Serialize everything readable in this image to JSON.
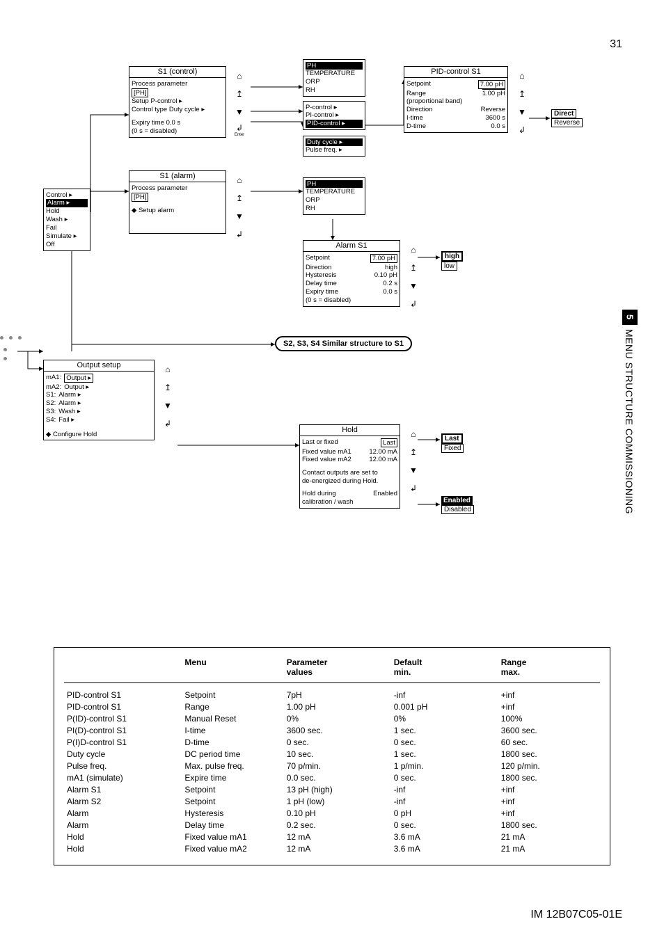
{
  "page_number": "31",
  "side_tab": {
    "number": "5",
    "text": "MENU STRUCTURE COMMISSIONING"
  },
  "doc_id": "IM 12B07C05-01E",
  "colors": {
    "line": "#000000",
    "bg": "#ffffff",
    "inv_bg": "#000000",
    "inv_fg": "#ffffff",
    "dot": "#888888"
  },
  "wires_arrowhead": {
    "size": 6,
    "color": "#000000"
  },
  "nav_icons": {
    "home": "⌂",
    "up": "↥",
    "down": "▼",
    "enter": "↲",
    "enter_label": "Enter"
  },
  "boxes": {
    "s1_control": {
      "title": "S1 (control)",
      "lines": [
        "Process parameter",
        "[PH]",
        "Setup    P-control ▸",
        "Control type   Duty cycle ▸",
        "",
        "Expiry time      0.0 s",
        "(0 s = disabled)"
      ]
    },
    "s1_alarm": {
      "title": "S1 (alarm)",
      "lines": [
        "Process parameter",
        "[PH]",
        "◆ Setup alarm"
      ]
    },
    "control_menu": {
      "lines": [
        "Control ▸",
        "Alarm ▸",
        "Hold",
        "Wash ▸",
        "Fail",
        "Simulate ▸",
        "Off"
      ],
      "selected_index": 1
    },
    "process_param_list": {
      "lines": [
        "PH",
        "TEMPERATURE",
        "ORP",
        "RH"
      ],
      "selected_index": 0
    },
    "control_type_list": {
      "lines": [
        "P-control ▸",
        "PI-control ▸",
        "PID-control ▸"
      ]
    },
    "duty_pulse_list": {
      "lines": [
        "Duty cycle ▸",
        "Pulse freq. ▸"
      ]
    },
    "process_param_list2": {
      "lines": [
        "PH",
        "TEMPERATURE",
        "ORP",
        "RH"
      ],
      "selected_index": 0
    },
    "pid_control": {
      "title": "PID-control S1",
      "rows": [
        [
          "Setpoint",
          "7.00 pH",
          "boxed"
        ],
        [
          "Range",
          "1.00 pH",
          "underline"
        ],
        [
          "(proportional band)",
          "",
          ""
        ],
        [
          "Direction",
          "Reverse",
          ""
        ],
        [
          "I-time",
          "3600 s",
          ""
        ],
        [
          "D-time",
          "0.0 s",
          ""
        ]
      ]
    },
    "direction_opts": [
      "Direct",
      "Reverse"
    ],
    "alarm_s1": {
      "title": "Alarm S1",
      "rows": [
        [
          "Setpoint",
          "7.00 pH",
          "boxed"
        ],
        [
          "Direction",
          "high",
          ""
        ],
        [
          "Hysteresis",
          "0.10 pH",
          ""
        ],
        [
          "Delay time",
          "0.2 s",
          ""
        ],
        [
          "Expiry time",
          "0.0 s",
          ""
        ],
        [
          "(0 s = disabled)",
          "",
          ""
        ]
      ]
    },
    "high_low": [
      "high",
      "low"
    ],
    "output_setup": {
      "title": "Output setup",
      "rows": [
        [
          "mA1:",
          "Output ▸",
          "boxed"
        ],
        [
          "mA2:",
          "Output ▸",
          ""
        ],
        [
          "S1:",
          "Alarm ▸",
          ""
        ],
        [
          "S2:",
          "Alarm ▸",
          ""
        ],
        [
          "S3:",
          "Wash ▸",
          ""
        ],
        [
          "S4:",
          "Fail ▸",
          ""
        ],
        [
          "◆ Configure Hold",
          "",
          ""
        ]
      ]
    },
    "hold": {
      "title": "Hold",
      "rows": [
        [
          "Last or fixed",
          "Last",
          "boxed"
        ],
        [
          "Fixed value mA1",
          "12.00 mA",
          ""
        ],
        [
          "Fixed value mA2",
          "12.00 mA",
          ""
        ],
        [
          "",
          "",
          ""
        ],
        [
          "Contact outputs are set to",
          "",
          ""
        ],
        [
          "de-energized during Hold.",
          "",
          ""
        ],
        [
          "",
          "",
          ""
        ],
        [
          "Hold during",
          "Enabled",
          ""
        ],
        [
          "calibration / wash",
          "",
          ""
        ]
      ]
    },
    "last_fixed": [
      "Last",
      "Fixed"
    ],
    "enabled_disabled": [
      "Enabled",
      "Disabled"
    ]
  },
  "note": "S2, S3, S4 Similar structure to S1",
  "table": {
    "headers": [
      "",
      "Menu",
      "Parameter\nvalues",
      "Default\nmin.",
      "Range\nmax."
    ],
    "col_widths": [
      "22%",
      "19%",
      "20%",
      "20%",
      "19%"
    ],
    "rows": [
      [
        "PID-control S1",
        "Setpoint",
        "7pH",
        "-inf",
        "+inf"
      ],
      [
        "PID-control S1",
        "Range",
        "1.00 pH",
        "0.001 pH",
        "+inf"
      ],
      [
        "P(ID)-control S1",
        "Manual Reset",
        "0%",
        "0%",
        "100%"
      ],
      [
        "PI(D)-control S1",
        "I-time",
        "3600 sec.",
        "1 sec.",
        "3600 sec."
      ],
      [
        "P(I)D-control S1",
        "D-time",
        "0 sec.",
        "0 sec.",
        "60 sec."
      ],
      [
        "Duty cycle",
        "DC period time",
        "10 sec.",
        "1 sec.",
        "1800 sec."
      ],
      [
        "Pulse freq.",
        "Max. pulse freq.",
        "70 p/min.",
        "1 p/min.",
        "120 p/min."
      ],
      [
        "mA1 (simulate)",
        "Expire time",
        "0.0 sec.",
        "0 sec.",
        "1800 sec."
      ],
      [
        "Alarm S1",
        "Setpoint",
        "13 pH (high)",
        "-inf",
        "+inf"
      ],
      [
        "Alarm S2",
        "Setpoint",
        "1 pH (low)",
        "-inf",
        "+inf"
      ],
      [
        "Alarm",
        "Hysteresis",
        "0.10 pH",
        "0 pH",
        "+inf"
      ],
      [
        "Alarm",
        "Delay time",
        "0.2 sec.",
        "0 sec.",
        "1800 sec."
      ],
      [
        "Hold",
        "Fixed value mA1",
        "12 mA",
        "3.6 mA",
        "21 mA"
      ],
      [
        "Hold",
        "Fixed value mA2",
        "12 mA",
        "3.6 mA",
        "21 mA"
      ]
    ]
  }
}
